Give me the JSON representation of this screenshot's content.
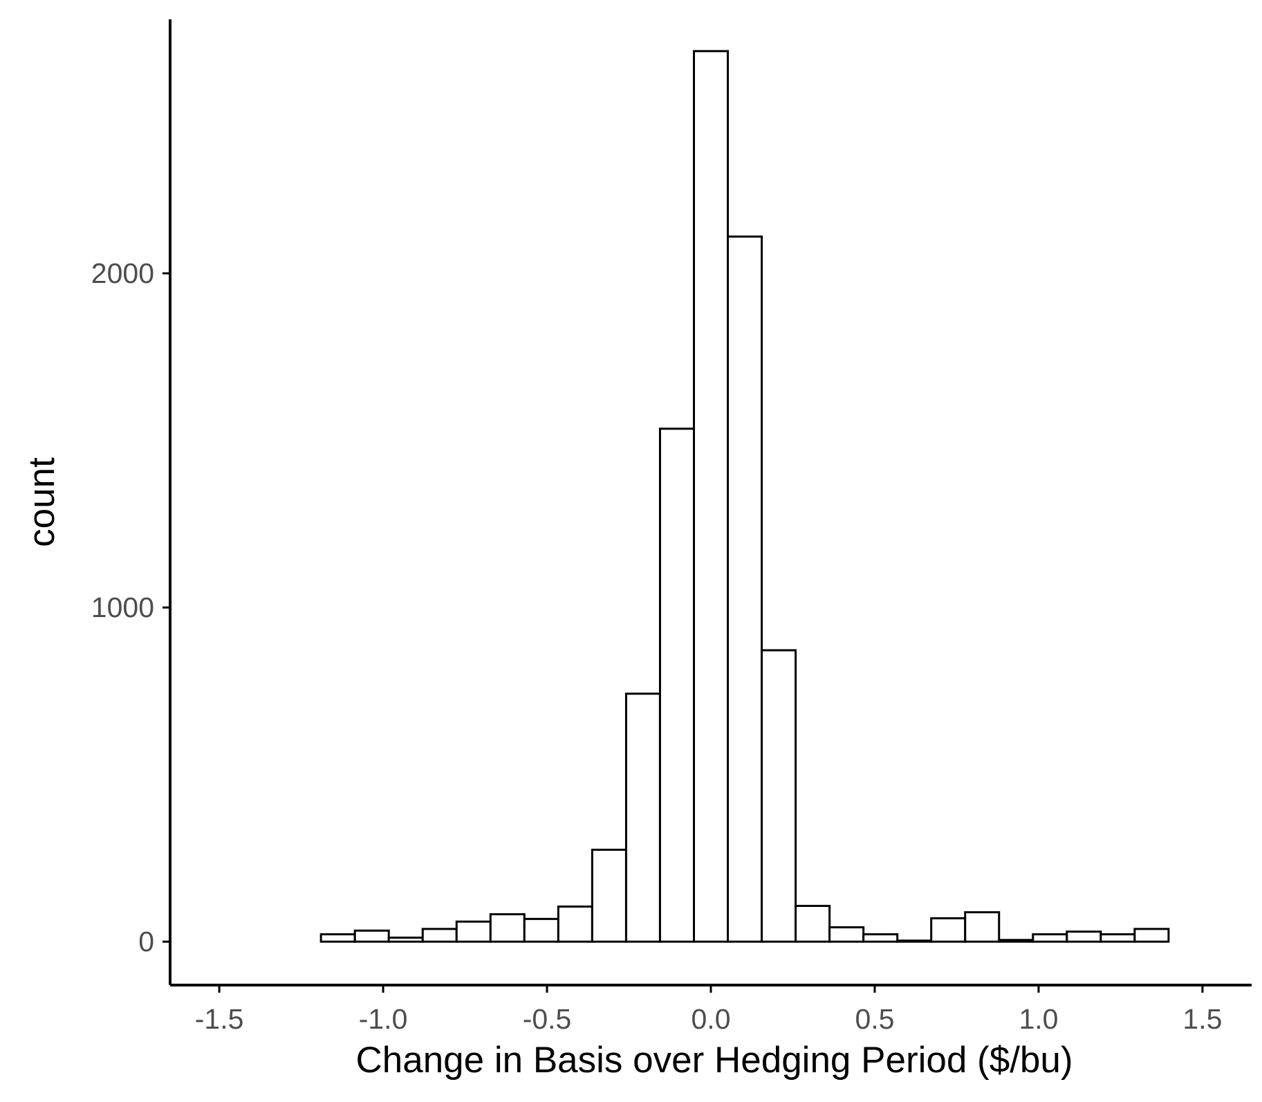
{
  "chart_data": {
    "type": "bar",
    "subtype": "histogram",
    "title": "",
    "xlabel": "Change in Basis over Hedging Period ($/bu)",
    "ylabel": "count",
    "xlim": [
      -1.65,
      1.65
    ],
    "ylim": [
      -130,
      2760
    ],
    "x_ticks": [
      -1.5,
      -1.0,
      -0.5,
      0.0,
      0.5,
      1.0,
      1.5
    ],
    "x_tick_labels": [
      "-1.5",
      "-1.0",
      "-0.5",
      "0.0",
      "0.5",
      "1.0",
      "1.5"
    ],
    "y_ticks": [
      0,
      1000,
      2000
    ],
    "y_tick_labels": [
      "0",
      "1000",
      "2000"
    ],
    "grid": false,
    "bar_fill": "#ffffff",
    "bar_stroke": "#000000",
    "bin_width": 0.1034,
    "bins": [
      {
        "x0": -1.5,
        "x1": -1.3966,
        "count": 0
      },
      {
        "x0": -1.3966,
        "x1": -1.2931,
        "count": 0
      },
      {
        "x0": -1.2931,
        "x1": -1.1897,
        "count": 0
      },
      {
        "x0": -1.1897,
        "x1": -1.0862,
        "count": 22
      },
      {
        "x0": -1.0862,
        "x1": -0.9828,
        "count": 33
      },
      {
        "x0": -0.9828,
        "x1": -0.8793,
        "count": 12
      },
      {
        "x0": -0.8793,
        "x1": -0.7759,
        "count": 38
      },
      {
        "x0": -0.7759,
        "x1": -0.6724,
        "count": 60
      },
      {
        "x0": -0.6724,
        "x1": -0.569,
        "count": 82
      },
      {
        "x0": -0.569,
        "x1": -0.4655,
        "count": 68
      },
      {
        "x0": -0.4655,
        "x1": -0.3621,
        "count": 105
      },
      {
        "x0": -0.3621,
        "x1": -0.2586,
        "count": 275
      },
      {
        "x0": -0.2586,
        "x1": -0.1552,
        "count": 742
      },
      {
        "x0": -0.1552,
        "x1": -0.0517,
        "count": 1535
      },
      {
        "x0": -0.0517,
        "x1": 0.0517,
        "count": 2665
      },
      {
        "x0": 0.0517,
        "x1": 0.1552,
        "count": 2110
      },
      {
        "x0": 0.1552,
        "x1": 0.2586,
        "count": 872
      },
      {
        "x0": 0.2586,
        "x1": 0.3621,
        "count": 107
      },
      {
        "x0": 0.3621,
        "x1": 0.4655,
        "count": 43
      },
      {
        "x0": 0.4655,
        "x1": 0.569,
        "count": 22
      },
      {
        "x0": 0.569,
        "x1": 0.6724,
        "count": 3
      },
      {
        "x0": 0.6724,
        "x1": 0.7759,
        "count": 70
      },
      {
        "x0": 0.7759,
        "x1": 0.8793,
        "count": 88
      },
      {
        "x0": 0.8793,
        "x1": 0.9828,
        "count": 5
      },
      {
        "x0": 0.9828,
        "x1": 1.0862,
        "count": 22
      },
      {
        "x0": 1.0862,
        "x1": 1.1897,
        "count": 30
      },
      {
        "x0": 1.1897,
        "x1": 1.2931,
        "count": 22
      },
      {
        "x0": 1.2931,
        "x1": 1.3966,
        "count": 38
      },
      {
        "x0": 1.3966,
        "x1": 1.5,
        "count": 0
      }
    ]
  }
}
